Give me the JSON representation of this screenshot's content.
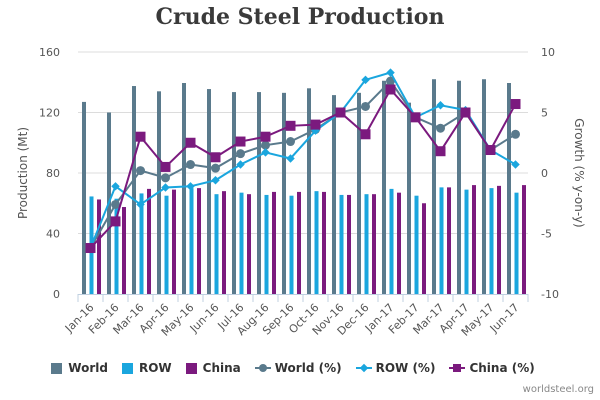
{
  "chart_data": {
    "type": "bar",
    "title": "Crude Steel Production",
    "xlabel": "",
    "ylabel": "Production (Mt)",
    "y2label": "Growth (% y-on-y)",
    "ylim": [
      0,
      160
    ],
    "y2lim": [
      -10,
      10
    ],
    "yticks": [
      "0",
      "40",
      "80",
      "120",
      "160"
    ],
    "y2ticks": [
      "-10",
      "-5",
      "0",
      "5",
      "10"
    ],
    "grid": true,
    "legend_position": "bottom",
    "categories": [
      "Jan-16",
      "Feb-16",
      "Mar-16",
      "Apr-16",
      "May-16",
      "Jun-16",
      "Jul-16",
      "Aug-16",
      "Sep-16",
      "Oct-16",
      "Nov-16",
      "Dec-16",
      "Jan-17",
      "Feb-17",
      "Mar-17",
      "Apr-17",
      "May-17",
      "Jun-17"
    ],
    "series": [
      {
        "name": "World",
        "kind": "bar",
        "axis": "left",
        "color": "#5a7a8c",
        "values": [
          127,
          120,
          137.5,
          134,
          139.5,
          135.5,
          133.5,
          133.5,
          133,
          136,
          131.5,
          133,
          141,
          126.5,
          142,
          141,
          142,
          139.5
        ]
      },
      {
        "name": "ROW",
        "kind": "bar",
        "axis": "left",
        "color": "#1aa6de",
        "values": [
          64.5,
          63,
          66.5,
          65,
          70,
          66,
          67,
          65.5,
          65,
          68,
          65.5,
          66,
          69.5,
          65,
          70.5,
          69,
          70,
          67
        ]
      },
      {
        "name": "China",
        "kind": "bar",
        "axis": "left",
        "color": "#7b1a7e",
        "values": [
          62.5,
          57.5,
          69.5,
          69,
          70,
          68,
          66,
          67.5,
          67.5,
          67.5,
          65.5,
          66,
          67,
          60,
          70.5,
          72,
          71.5,
          72
        ]
      },
      {
        "name": "World (%)",
        "kind": "line",
        "marker": "circle",
        "axis": "right",
        "color": "#5a7a8c",
        "values": [
          -6.2,
          -2.6,
          0.2,
          -0.4,
          0.7,
          0.4,
          1.6,
          2.3,
          2.6,
          3.6,
          5.0,
          5.5,
          7.6,
          4.6,
          3.7,
          5.0,
          1.9,
          3.2
        ]
      },
      {
        "name": "ROW (%)",
        "kind": "line",
        "marker": "diamond",
        "axis": "right",
        "color": "#1aa6de",
        "values": [
          -6.2,
          -1.1,
          -2.6,
          -1.2,
          -1.1,
          -0.6,
          0.7,
          1.7,
          1.2,
          3.5,
          5.0,
          7.7,
          8.3,
          4.6,
          5.6,
          5.2,
          1.9,
          0.7
        ]
      },
      {
        "name": "China (%)",
        "kind": "line",
        "marker": "square",
        "axis": "right",
        "color": "#7b1a7e",
        "values": [
          -6.2,
          -4.0,
          3.0,
          0.5,
          2.5,
          1.3,
          2.6,
          3.0,
          3.9,
          4.0,
          5.0,
          3.2,
          6.9,
          4.6,
          1.8,
          5.0,
          1.9,
          5.7
        ]
      }
    ]
  },
  "credit": "worldsteel.org"
}
